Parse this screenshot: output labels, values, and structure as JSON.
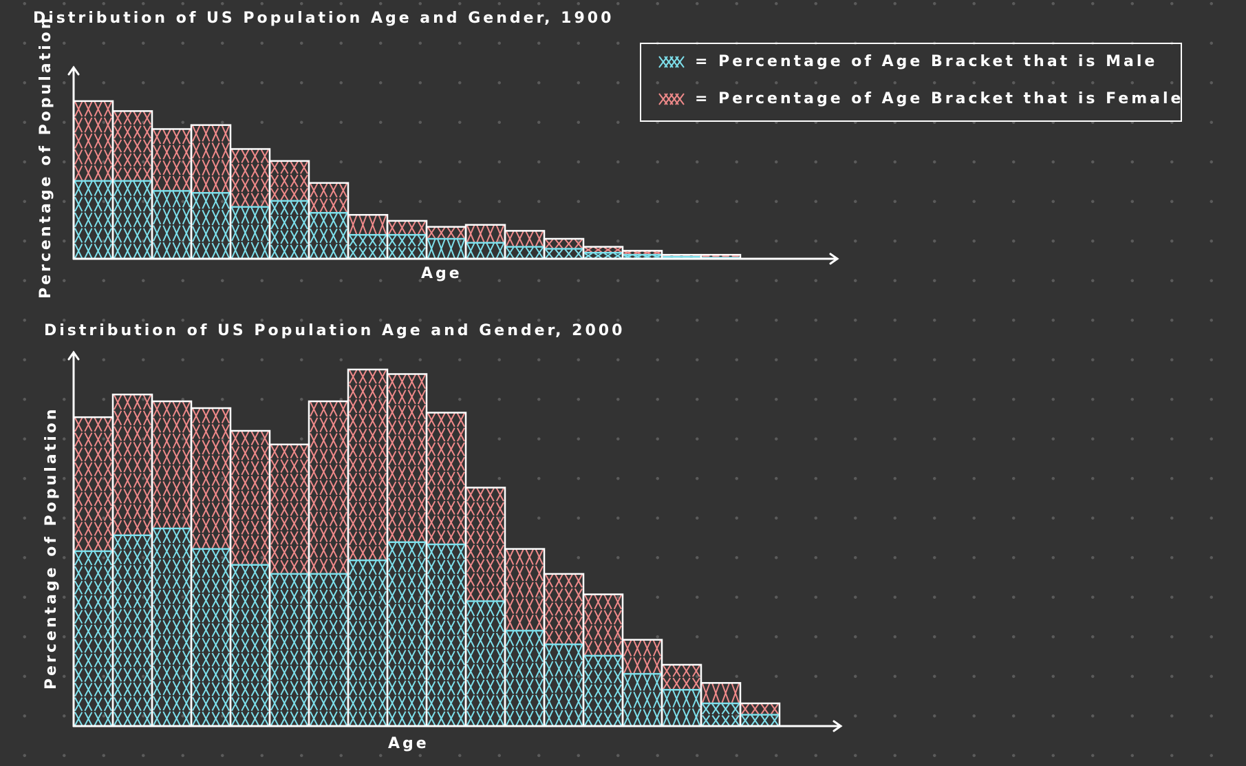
{
  "colors": {
    "background": "#333333",
    "male": "#7ee0ec",
    "female": "#f08a8a",
    "axis": "#ffffff"
  },
  "legend": {
    "male_label": "= Percentage of Age Bracket that is Male",
    "female_label": "= Percentage of Age Bracket that is Female",
    "placement": "top-right"
  },
  "chart_data": [
    {
      "type": "bar",
      "stacked": true,
      "title": "Distribution of US Population Age and Gender, 1900",
      "xlabel": "Age",
      "ylabel": "Percentage of Population",
      "ylim": [
        0,
        8
      ],
      "series": [
        {
          "name": "Percentage of Age Bracket that is Male",
          "values": [
            3.9,
            3.9,
            3.4,
            3.3,
            2.6,
            2.9,
            2.3,
            1.2,
            1.2,
            1.0,
            0.8,
            0.6,
            0.5,
            0.3,
            0.2,
            0.1,
            0.05
          ]
        },
        {
          "name": "Percentage of Age Bracket that is Female",
          "values": [
            4.0,
            3.5,
            3.1,
            3.4,
            2.9,
            2.0,
            1.5,
            1.0,
            0.7,
            0.6,
            0.9,
            0.8,
            0.5,
            0.3,
            0.2,
            0.1,
            0.15
          ]
        }
      ]
    },
    {
      "type": "bar",
      "stacked": true,
      "title": "Distribution of US Population Age and Gender, 2000",
      "xlabel": "Age",
      "ylabel": "Percentage of Population",
      "ylim": [
        0,
        8
      ],
      "series": [
        {
          "name": "Percentage of Age Bracket that is Male",
          "values": [
            3.85,
            4.2,
            4.35,
            3.9,
            3.55,
            3.35,
            3.35,
            3.65,
            4.05,
            4.0,
            2.75,
            2.1,
            1.8,
            1.55,
            1.15,
            0.8,
            0.5,
            0.25
          ]
        },
        {
          "name": "Percentage of Age Bracket that is Female",
          "values": [
            2.95,
            3.1,
            2.8,
            3.1,
            2.95,
            2.85,
            3.8,
            4.2,
            3.7,
            2.9,
            2.5,
            1.8,
            1.55,
            1.35,
            0.75,
            0.55,
            0.45,
            0.25
          ]
        }
      ]
    }
  ]
}
